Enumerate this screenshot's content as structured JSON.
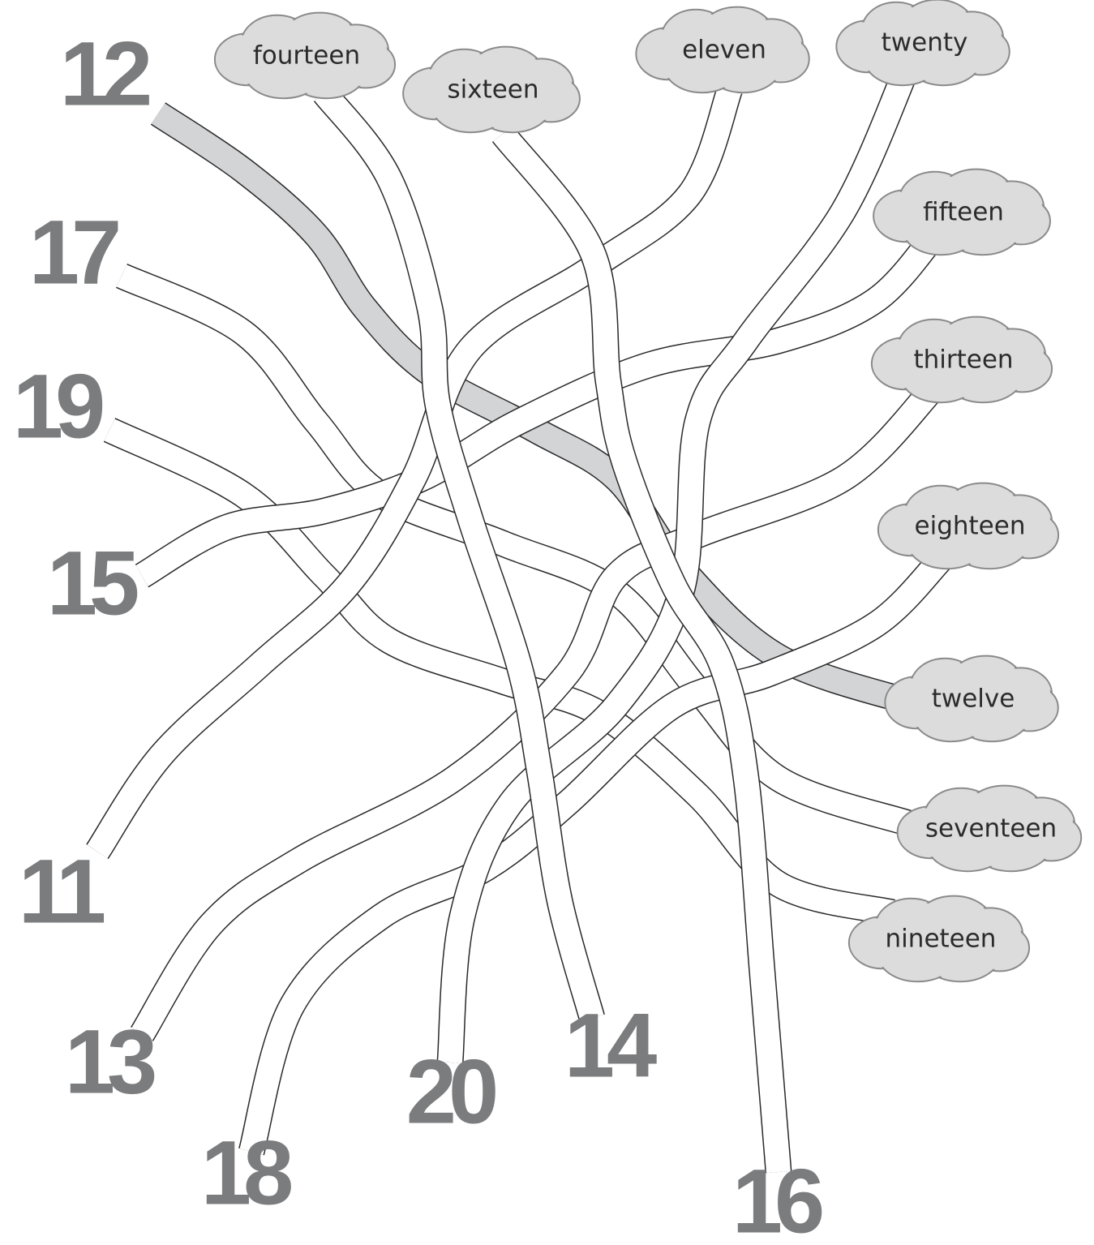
{
  "numbers": [
    "12",
    "17",
    "19",
    "15",
    "11",
    "13",
    "18",
    "20",
    "14",
    "16"
  ],
  "words": [
    "fourteen",
    "sixteen",
    "eleven",
    "twenty",
    "fifteen",
    "thirteen",
    "eighteen",
    "twelve",
    "seventeen",
    "nineteen"
  ]
}
